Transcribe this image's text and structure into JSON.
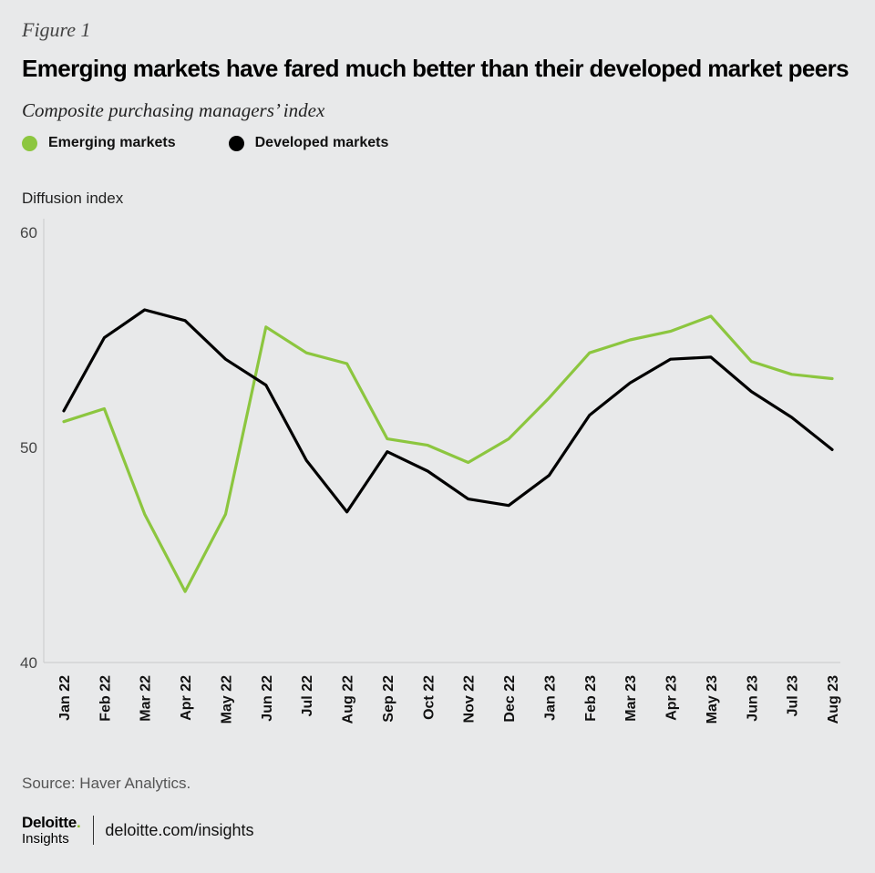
{
  "figure_label": "Figure 1",
  "legend": [
    {
      "label": "Emerging markets",
      "color": "#8cc63f"
    },
    {
      "label": "Developed markets",
      "color": "#000000"
    }
  ],
  "source": "Source: Haver Analytics.",
  "footer": {
    "logo_main": "Deloitte",
    "logo_dot": ".",
    "logo_sub": "Insights",
    "link": "deloitte.com/insights"
  },
  "chart_data": {
    "type": "line",
    "title": "Emerging markets have fared much better than their developed market peers",
    "subtitle": "Composite purchasing managers’ index",
    "ylabel": "Diffusion index",
    "xlabel": "",
    "ylim": [
      40,
      60
    ],
    "yticks": [
      40,
      50,
      60
    ],
    "grid": false,
    "legend_position": "top-left",
    "categories": [
      "Jan 22",
      "Feb 22",
      "Mar 22",
      "Apr 22",
      "May 22",
      "Jun 22",
      "Jul 22",
      "Aug 22",
      "Sep 22",
      "Oct 22",
      "Nov 22",
      "Dec 22",
      "Jan 23",
      "Feb 23",
      "Mar 23",
      "Apr 23",
      "May 23",
      "Jun 23",
      "Jul 23",
      "Aug 23"
    ],
    "series": [
      {
        "name": "Emerging markets",
        "color": "#8cc63f",
        "values": [
          51.2,
          51.8,
          46.9,
          43.3,
          46.9,
          55.6,
          54.4,
          53.9,
          50.4,
          50.1,
          49.3,
          50.4,
          52.3,
          54.4,
          55.0,
          55.4,
          56.1,
          54.0,
          53.4,
          53.2
        ]
      },
      {
        "name": "Developed markets",
        "color": "#000000",
        "values": [
          51.7,
          55.1,
          56.4,
          55.9,
          54.1,
          52.9,
          49.4,
          47.0,
          49.8,
          48.9,
          47.6,
          47.3,
          48.7,
          51.5,
          53.0,
          54.1,
          54.2,
          52.6,
          51.4,
          49.9
        ]
      }
    ]
  }
}
